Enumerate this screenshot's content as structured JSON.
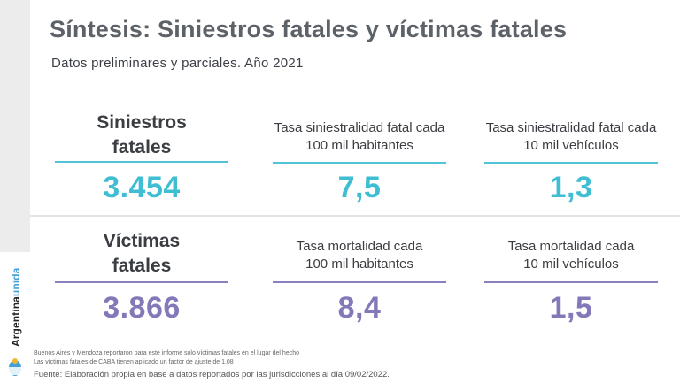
{
  "title": "Síntesis: Siniestros fatales y víctimas fatales",
  "subtitle": "Datos preliminares y parciales. Año 2021",
  "brand": {
    "part1": "Argentina",
    "part2": "unida",
    "accent": "#46a0d8"
  },
  "rows": [
    {
      "metrics": [
        {
          "label_line1": "Siniestros",
          "label_line2": "fatales",
          "value": "3.454"
        },
        {
          "label_line1": "Tasa siniestralidad fatal cada",
          "label_line2": "100 mil habitantes",
          "value": "7,5"
        },
        {
          "label_line1": "Tasa siniestralidad fatal cada",
          "label_line2": "10 mil vehículos",
          "value": "1,3"
        }
      ],
      "color": "#3fbdd2"
    },
    {
      "metrics": [
        {
          "label_line1": "Víctimas",
          "label_line2": "fatales",
          "value": "3.866"
        },
        {
          "label_line1": "Tasa mortalidad cada",
          "label_line2": "100 mil habitantes",
          "value": "8,4"
        },
        {
          "label_line1": "Tasa mortalidad cada",
          "label_line2": "10 mil vehículos",
          "value": "1,5"
        }
      ],
      "color": "#8378b8"
    }
  ],
  "notes": [
    "Buenos Aires y Mendoza reportaron para este informe solo víctimas fatales en el lugar del hecho",
    "Las víctimas fatales de CABA tienen aplicado un factor de ajuste de 1,08"
  ],
  "source": "Fuente: Elaboración propia en base a datos reportados por las jurisdicciones al día 09/02/2022."
}
